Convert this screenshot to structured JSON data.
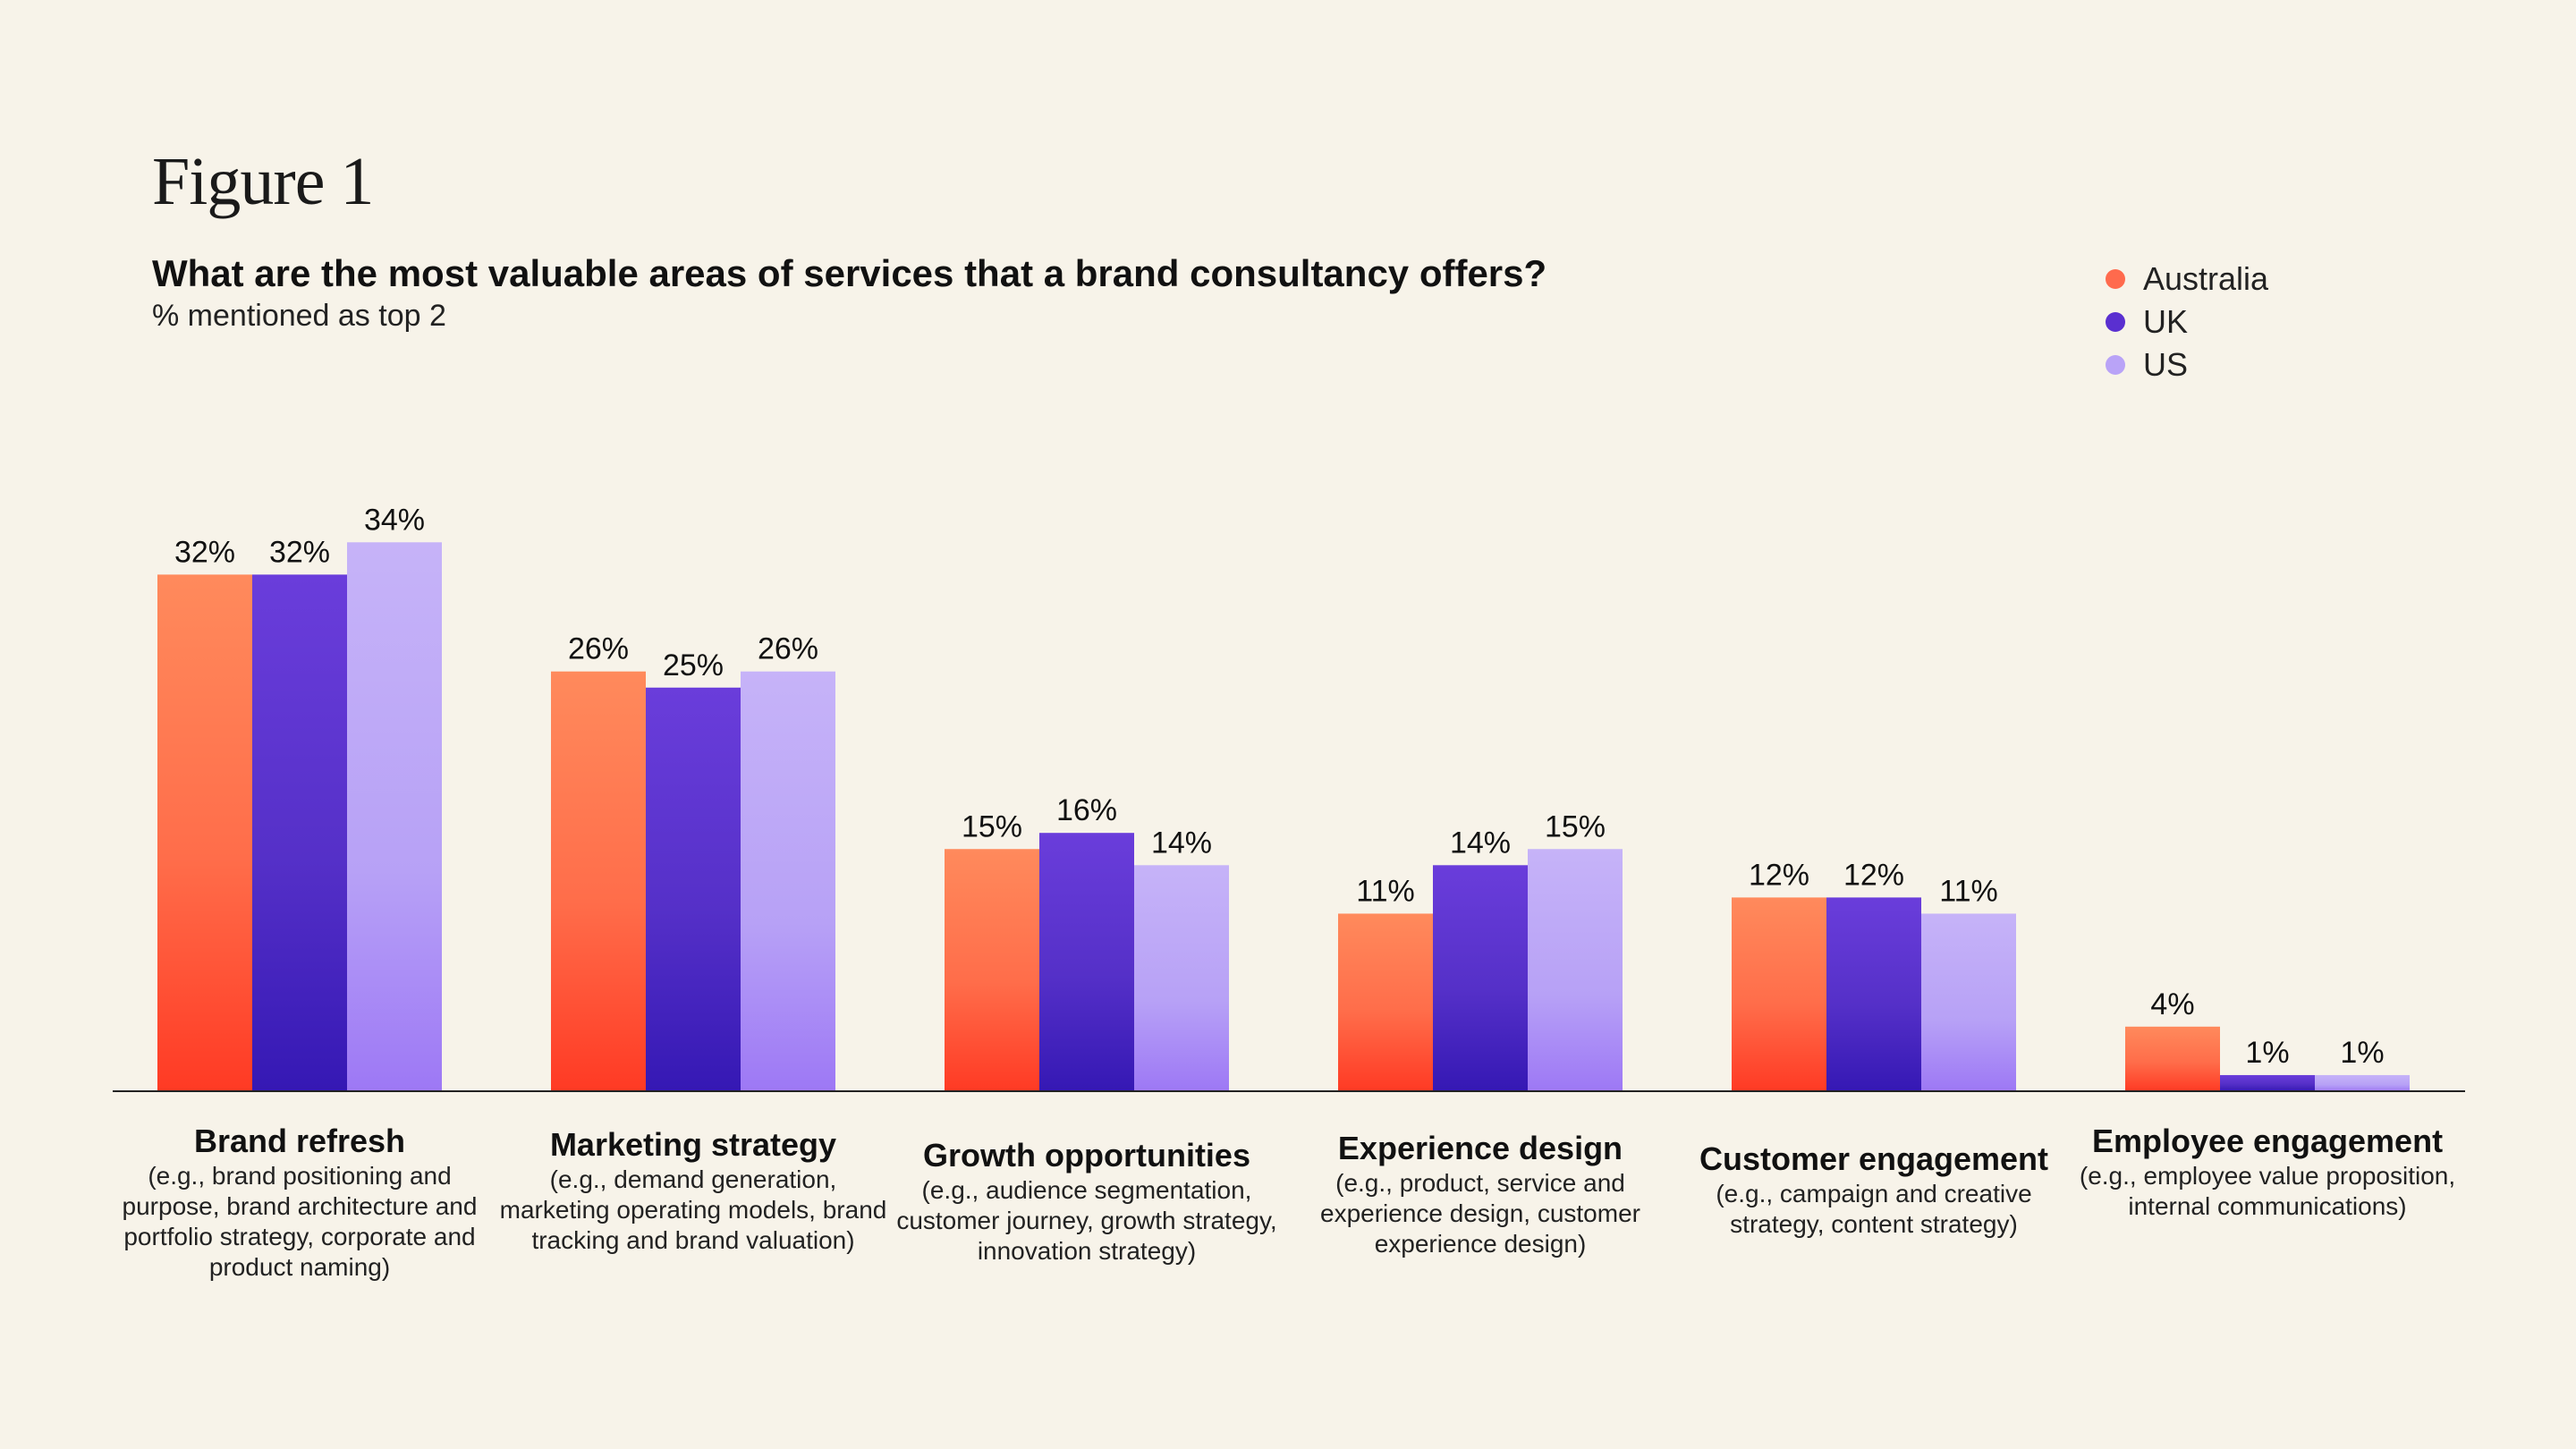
{
  "figure_label": "Figure 1",
  "legend": [
    {
      "name": "Australia",
      "color": "#ff6a4d"
    },
    {
      "name": "UK",
      "color": "#5a2fd0"
    },
    {
      "name": "US",
      "color": "#b9a3f7"
    }
  ],
  "chart_data": {
    "type": "bar",
    "title": "What are the most valuable areas of services that a brand consultancy offers?",
    "subtitle": "% mentioned as top 2",
    "ylim": [
      0,
      34
    ],
    "value_suffix": "%",
    "categories": [
      {
        "name": "Brand refresh",
        "description": "(e.g., brand positioning and purpose, brand architecture and portfolio strategy, corporate and product naming)"
      },
      {
        "name": "Marketing strategy",
        "description": "(e.g., demand generation, marketing operating models, brand tracking and brand valuation)"
      },
      {
        "name": "Growth opportunities",
        "description": "(e.g., audience segmentation, customer journey, growth strategy, innovation strategy)"
      },
      {
        "name": "Experience design",
        "description": "(e.g., product, service and experience design, customer experience design)"
      },
      {
        "name": "Customer engagement",
        "description": "(e.g., campaign and creative strategy, content strategy)"
      },
      {
        "name": "Employee engagement",
        "description": "(e.g., employee value proposition, internal communications)"
      }
    ],
    "series": [
      {
        "name": "Australia",
        "values": [
          32,
          26,
          15,
          11,
          12,
          4
        ]
      },
      {
        "name": "UK",
        "values": [
          32,
          25,
          16,
          14,
          12,
          1
        ]
      },
      {
        "name": "US",
        "values": [
          34,
          26,
          14,
          15,
          11,
          1
        ]
      }
    ]
  }
}
